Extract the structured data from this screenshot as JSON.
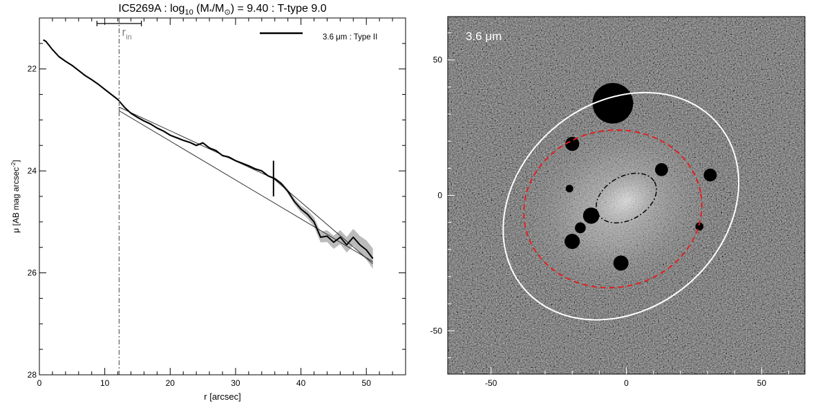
{
  "chart_data": [
    {
      "type": "line",
      "title_parts": {
        "main": "IC5269A : log",
        "sub": "10",
        "mid": " (M",
        "star": "*",
        "sep": "/M",
        "sun": "⊙",
        "tail": ") = 9.40 : T-type 9.0"
      },
      "xlabel": "r [arcsec]",
      "ylabel_parts": {
        "main": "μ [AB mag arcsec",
        "sup": "-2",
        "close": "]"
      },
      "xlim": [
        0,
        56
      ],
      "ylim": [
        28,
        21.0
      ],
      "y_inverted": true,
      "xticks": [
        "0",
        "10",
        "20",
        "30",
        "40",
        "50"
      ],
      "yticks": [
        "22",
        "24",
        "26",
        "28"
      ],
      "legend": {
        "label": "3.6 μm : Type II",
        "placement": "top-right"
      },
      "r_in": {
        "label_main": "r",
        "label_sub": "in",
        "x": 12.2,
        "err_low": 8.8,
        "err_high": 15.6
      },
      "break_marker": {
        "x": 35.8,
        "y_low": 23.8,
        "y_high": 24.5
      },
      "profile": {
        "x": [
          0.6,
          1.0,
          2.0,
          3.0,
          4.0,
          5.0,
          6.0,
          7.0,
          8.0,
          9.0,
          10.0,
          11.0,
          12.0,
          13.0,
          14.0,
          15.0,
          16.0,
          17.0,
          18.0,
          19.0,
          20.0,
          21.0,
          22.0,
          23.0,
          24.0,
          25.0,
          26.0,
          27.0,
          28.0,
          29.0,
          30.0,
          31.0,
          32.0,
          33.0,
          34.0,
          35.0,
          36.0,
          37.0,
          38.0,
          39.0,
          40.0,
          41.0,
          42.0,
          43.0,
          44.0,
          45.0,
          46.0,
          47.0,
          48.0,
          49.0,
          50.0,
          51.0
        ],
        "y": [
          21.43,
          21.46,
          21.62,
          21.76,
          21.85,
          21.93,
          22.03,
          22.13,
          22.21,
          22.3,
          22.4,
          22.5,
          22.6,
          22.75,
          22.87,
          22.95,
          23.02,
          23.08,
          23.16,
          23.22,
          23.3,
          23.35,
          23.4,
          23.44,
          23.5,
          23.45,
          23.55,
          23.6,
          23.7,
          23.73,
          23.8,
          23.85,
          23.9,
          23.96,
          24.0,
          24.1,
          24.15,
          24.25,
          24.4,
          24.6,
          24.75,
          24.85,
          25.0,
          25.3,
          25.28,
          25.4,
          25.3,
          25.45,
          25.3,
          25.45,
          25.55,
          25.72
        ]
      },
      "inner_fit": {
        "x": [
          12.2,
          35.8
        ],
        "y": [
          22.75,
          24.15
        ]
      },
      "outer_fit": {
        "x": [
          12.2,
          51.0
        ],
        "y": [
          22.82,
          25.78
        ]
      }
    },
    {
      "type": "image",
      "label": "3.6 μm",
      "xlim": [
        -66,
        66
      ],
      "ylim": [
        -66,
        66
      ],
      "xticks": [
        "-50",
        "0",
        "50"
      ],
      "yticks": [
        "-50",
        "0",
        "50"
      ],
      "ellipses": [
        {
          "name": "outer",
          "cx": -2,
          "cy": -4,
          "a": 47,
          "b": 38,
          "angle": -40,
          "color": "#ffffff",
          "dash": "solid"
        },
        {
          "name": "break",
          "cx": -5,
          "cy": -5,
          "a": 33,
          "b": 29,
          "angle": -10,
          "color": "#e02020",
          "dash": "dashed"
        },
        {
          "name": "inner",
          "cx": 0,
          "cy": -1,
          "a": 12,
          "b": 8,
          "angle": -30,
          "color": "#000000",
          "dash": "dashdot"
        }
      ],
      "masks": [
        {
          "x": -5,
          "y": 34,
          "r": 7.5
        },
        {
          "x": -20,
          "y": 19,
          "r": 2.6
        },
        {
          "x": 13,
          "y": 9.5,
          "r": 2.4
        },
        {
          "x": 31,
          "y": 7.5,
          "r": 2.4
        },
        {
          "x": -21,
          "y": 2.5,
          "r": 1.4
        },
        {
          "x": -13,
          "y": -7.5,
          "r": 3.0
        },
        {
          "x": -17,
          "y": -12,
          "r": 2.0
        },
        {
          "x": -20,
          "y": -17,
          "r": 2.8
        },
        {
          "x": 27,
          "y": -11.5,
          "r": 1.5
        },
        {
          "x": -2,
          "y": -25,
          "r": 2.8
        }
      ]
    }
  ]
}
